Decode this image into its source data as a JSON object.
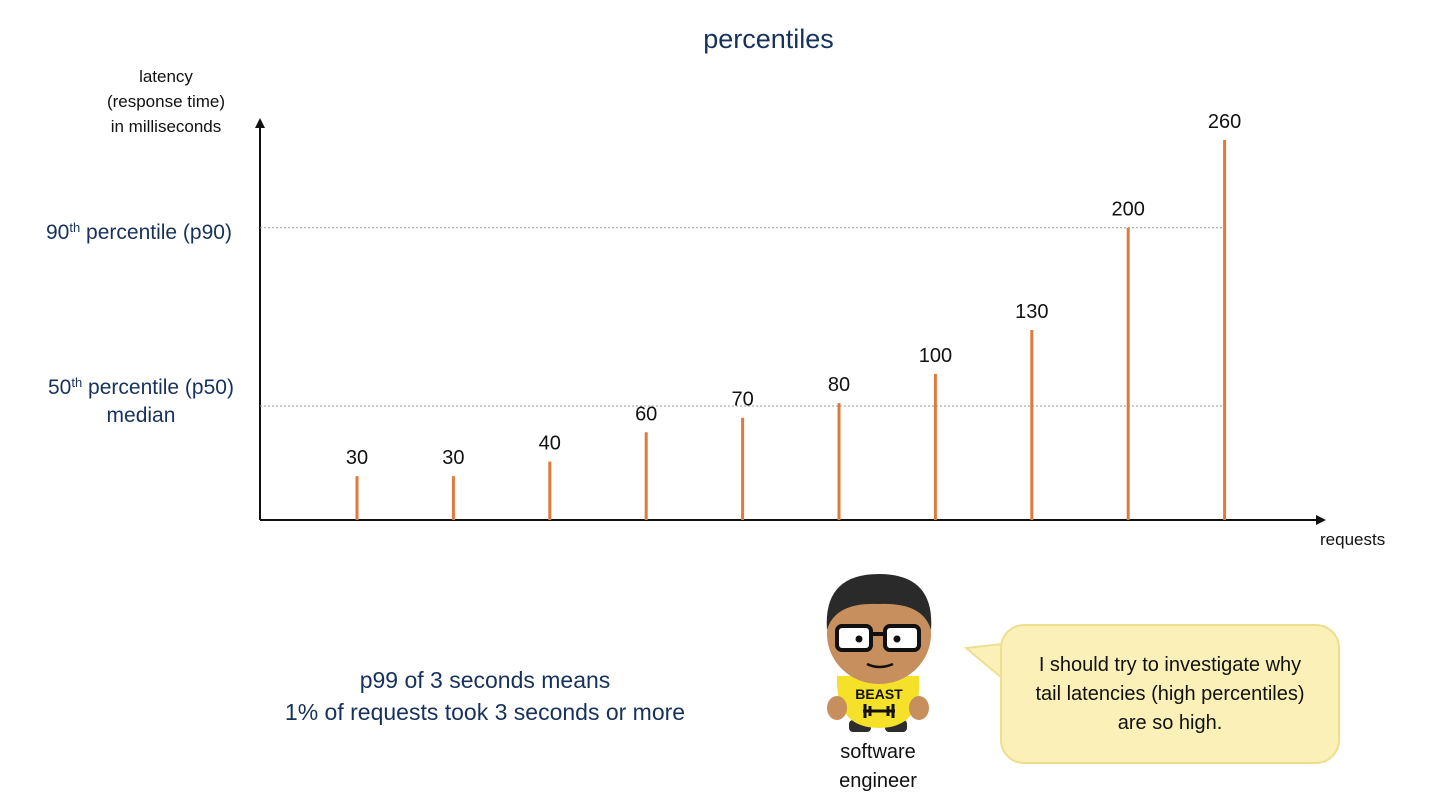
{
  "title": "percentiles",
  "y_axis_label": [
    "latency",
    "(response time)",
    "in milliseconds"
  ],
  "x_axis_label": "requests",
  "p90_label": {
    "prefix": "90",
    "sup": "th",
    "rest": " percentile (p90)"
  },
  "p50_label": {
    "prefix": "50",
    "sup": "th",
    "rest": " percentile (p50)",
    "line2": "median"
  },
  "note": [
    "p99 of 3 seconds means",
    "1% of requests took 3 seconds or more"
  ],
  "character": {
    "caption": [
      "software",
      "engineer"
    ],
    "shirt_text": "BEAST"
  },
  "speech_bubble": [
    "I should try to investigate why",
    "tail latencies (high percentiles)",
    "are so high."
  ],
  "colors": {
    "bar": "#e07a3b",
    "title": "#16325c",
    "bubble_fill": "#fbf0b8",
    "bubble_border": "#eedf8e",
    "shirt": "#f5e12a"
  },
  "chart_data": {
    "type": "bar",
    "title": "percentiles",
    "xlabel": "requests",
    "ylabel": "latency (response time) in milliseconds",
    "values": [
      30,
      30,
      40,
      60,
      70,
      80,
      100,
      130,
      200,
      260
    ],
    "ylim": [
      0,
      260
    ],
    "reference_lines": [
      {
        "name": "90th percentile (p90)",
        "value": 200
      },
      {
        "name": "50th percentile (p50) median",
        "value": 78
      }
    ],
    "grid": false,
    "legend": "none"
  }
}
